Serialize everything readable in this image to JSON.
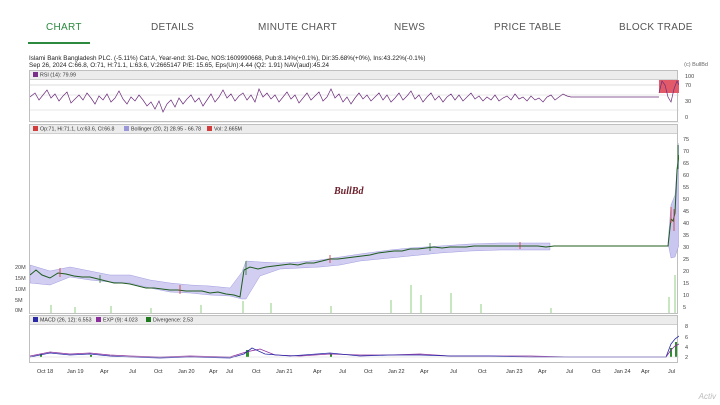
{
  "tabs": [
    {
      "label": "CHART",
      "active": true
    },
    {
      "label": "DETAILS"
    },
    {
      "label": "MINUTE CHART"
    },
    {
      "label": "NEWS"
    },
    {
      "label": "PRICE TABLE"
    },
    {
      "label": "BLOCK TRADE"
    }
  ],
  "info": {
    "line1": "Islami Bank Bangladesh PLC. (-5.11%) Cat:A, Year-end: 31-Dec, NOS:1609990668, Pub:8.14%(+0.1%), Dir:35.68%(+0%), Ins:43.22%(-0.1%)",
    "line2": "Sep 26, 2024 C:66.8, O:71, H:71.1, L:63.6, V:2665147 P/E: 15.65, Eps(Un):4.44 (Q2: 1.91) NAV(aud):45.24",
    "copyright": "(c) BullBd"
  },
  "rsi_panel": {
    "legend": "RSI (14): 79.99",
    "ticks": [
      "100",
      "70",
      "30",
      "0"
    ]
  },
  "price_panel": {
    "legend_ohlc": "Op:71, Hi:71.1, Lo:63.6, Cl:66.8",
    "legend_boll": "Bollinger (20, 2) 28.95 - 66.78",
    "legend_vol": "Vol: 2.665M",
    "price_ticks": [
      "75",
      "70",
      "65",
      "60",
      "55",
      "50",
      "45",
      "40",
      "35",
      "30",
      "25",
      "20",
      "15",
      "10",
      "5"
    ],
    "volume_ticks": [
      "20M",
      "15M",
      "10M",
      "5M",
      "0M"
    ],
    "watermark": "BullBd"
  },
  "macd_panel": {
    "legend_macd": "MACD (26, 12): 6.553",
    "legend_exp": "EXP (9): 4.023",
    "legend_div": "Divergence: 2.53",
    "ticks": [
      "8",
      "6",
      "4",
      "2"
    ]
  },
  "x_axis": [
    "Oct 18",
    "Jan 19",
    "Apr",
    "Jul",
    "Oct",
    "Jan 20",
    "Apr",
    "Jul",
    "Oct",
    "Jan 21",
    "Apr",
    "Jul",
    "Oct",
    "Jan 22",
    "Apr",
    "Jul",
    "Oct",
    "Jan 23",
    "Apr",
    "Jul",
    "Oct",
    "Jan 24",
    "Apr",
    "Jul"
  ],
  "corner_text": "Activ",
  "colors": {
    "accent": "#2b8a3e",
    "rsi_line": "#6b2d7a",
    "price_line": "#1e5c1e",
    "bollinger": "#b9b6e8",
    "volume": "#c8e6c0",
    "macd": "#2a2aa8",
    "exp": "#8a2f9c",
    "divergence": "#1f7a1f"
  }
}
